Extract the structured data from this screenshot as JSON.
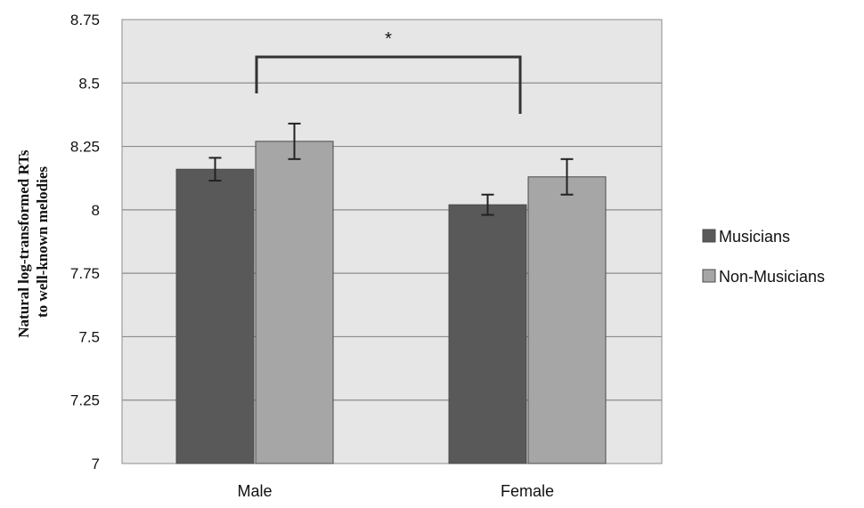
{
  "chart_data": {
    "type": "bar",
    "categories": [
      "Male",
      "Female"
    ],
    "series": [
      {
        "name": "Musicians",
        "color": "#595959",
        "values": [
          8.16,
          8.02
        ],
        "errors": [
          0.045,
          0.04
        ]
      },
      {
        "name": "Non-Musicians",
        "color": "#a6a6a6",
        "values": [
          8.27,
          8.13
        ],
        "errors": [
          0.07,
          0.07
        ]
      }
    ],
    "ylim": [
      7,
      8.75
    ],
    "yticks": [
      "7",
      "7.25",
      "7.5",
      "7.75",
      "8",
      "8.25",
      "8.5",
      "8.75"
    ],
    "ylabel_lines": [
      "Natural log-transformed RTs",
      "to well-known melodies"
    ],
    "xlabel": "",
    "title": "",
    "grid": true,
    "plot_background": "#e6e6e6",
    "legend_position": "right",
    "annotation": {
      "text": "*",
      "between": [
        "Male",
        "Female"
      ]
    }
  }
}
